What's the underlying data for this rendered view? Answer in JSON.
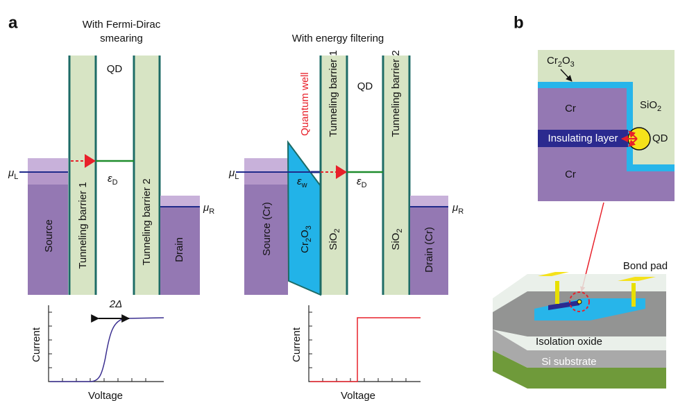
{
  "panel_a": {
    "label": "a",
    "left": {
      "title_lines": [
        "With Fermi-Dirac",
        "smearing"
      ],
      "qd": "QD",
      "mu_l": {
        "base": "μ",
        "sub": "L"
      },
      "mu_r": {
        "base": "μ",
        "sub": "R"
      },
      "eps_d": {
        "base": "ε",
        "sub": "D"
      },
      "source": "Source",
      "barrier_1": "Tunneling barrier 1",
      "barrier_2": "Tunneling barrier 2",
      "drain": "Drain",
      "plot": {
        "y_label": "Current",
        "x_label": "Voltage",
        "width_label": "2Δ"
      }
    },
    "right": {
      "title": "With energy filtering",
      "qd": "QD",
      "quantum_well": "Quantum well",
      "mu_l": {
        "base": "μ",
        "sub": "L"
      },
      "mu_r": {
        "base": "μ",
        "sub": "R"
      },
      "eps_w": {
        "base": "ε",
        "sub": "w"
      },
      "eps_d": {
        "base": "ε",
        "sub": "D"
      },
      "source": "Source (Cr)",
      "cr2o3": {
        "a": "Cr",
        "s1": "2",
        "b": "O",
        "s2": "3"
      },
      "barrier_1": "Tunneling barrier 1",
      "sio2_1": {
        "base": "SiO",
        "sub": "2"
      },
      "barrier_2": "Tunneling barrier 2",
      "sio2_2": {
        "base": "SiO",
        "sub": "2"
      },
      "drain": "Drain (Cr)",
      "plot": {
        "y_label": "Current",
        "x_label": "Voltage"
      }
    }
  },
  "panel_b": {
    "label": "b",
    "cross_section": {
      "cr2o3": {
        "a": "Cr",
        "s1": "2",
        "b": "O",
        "s2": "3"
      },
      "sio2": {
        "base": "SiO",
        "sub": "2"
      },
      "cr_top": "Cr",
      "cr_bottom": "Cr",
      "insulating_layer": "Insulating layer",
      "qd": "QD"
    },
    "device": {
      "bond_pad": "Bond pad",
      "isolation_oxide": "Isolation oxide",
      "si_substrate": "Si substrate"
    }
  }
}
